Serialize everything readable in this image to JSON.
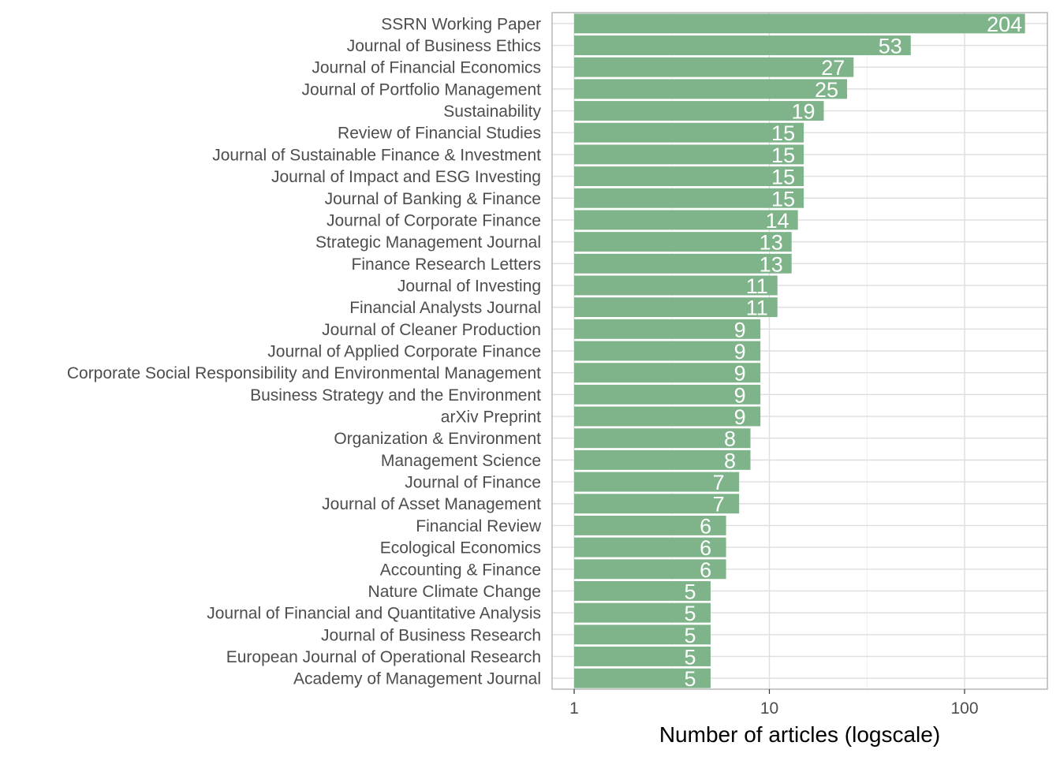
{
  "chart_data": {
    "type": "bar",
    "orientation": "horizontal",
    "xscale": "log10",
    "xlabel": "Number of articles (logscale)",
    "ylabel": "",
    "title": "",
    "grid": true,
    "legend": "none",
    "bar_color": "#7fb48a",
    "xticks": [
      "1",
      "10",
      "100"
    ],
    "categories": [
      "SSRN Working Paper",
      "Journal of Business Ethics",
      "Journal of Financial Economics",
      "Journal of Portfolio Management",
      "Sustainability",
      "Review of Financial Studies",
      "Journal of Sustainable Finance & Investment",
      "Journal of Impact and ESG Investing",
      "Journal of Banking & Finance",
      "Journal of Corporate Finance",
      "Strategic Management Journal",
      "Finance Research Letters",
      "Journal of Investing",
      "Financial Analysts Journal",
      "Journal of Cleaner Production",
      "Journal of Applied Corporate Finance",
      "Corporate Social Responsibility and Environmental Management",
      "Business Strategy and the Environment",
      "arXiv Preprint",
      "Organization & Environment",
      "Management Science",
      "Journal of Finance",
      "Journal of Asset Management",
      "Financial Review",
      "Ecological Economics",
      "Accounting & Finance",
      "Nature Climate Change",
      "Journal of Financial and Quantitative Analysis",
      "Journal of Business Research",
      "European Journal of Operational Research",
      "Academy of Management Journal"
    ],
    "values": [
      204,
      53,
      27,
      25,
      19,
      15,
      15,
      15,
      15,
      14,
      13,
      13,
      11,
      11,
      9,
      9,
      9,
      9,
      9,
      8,
      8,
      7,
      7,
      6,
      6,
      6,
      5,
      5,
      5,
      5,
      5
    ]
  }
}
